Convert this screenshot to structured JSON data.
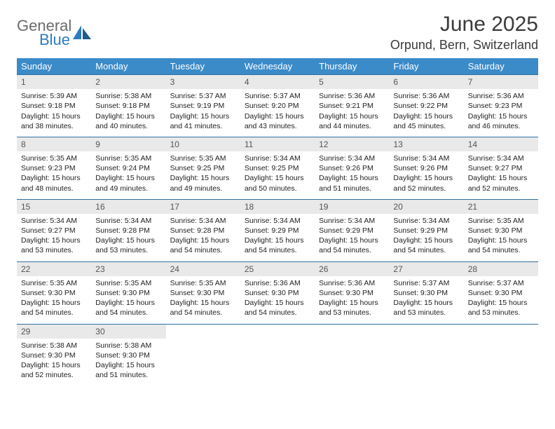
{
  "logo": {
    "word1": "General",
    "word2": "Blue"
  },
  "title": "June 2025",
  "location": "Orpund, Bern, Switzerland",
  "colors": {
    "header_bg": "#3b8bc9",
    "header_fg": "#ffffff",
    "row_border": "#2f6fa3",
    "daynum_bg": "#e9e9e9",
    "daynum_fg": "#555555",
    "body_fg": "#222222",
    "logo_gray": "#6b6b6b",
    "logo_blue": "#2f7bbf",
    "page_bg": "#ffffff"
  },
  "weekdays": [
    "Sunday",
    "Monday",
    "Tuesday",
    "Wednesday",
    "Thursday",
    "Friday",
    "Saturday"
  ],
  "weeks": [
    [
      {
        "n": "1",
        "sr": "5:39 AM",
        "ss": "9:18 PM",
        "dl": "15 hours and 38 minutes."
      },
      {
        "n": "2",
        "sr": "5:38 AM",
        "ss": "9:18 PM",
        "dl": "15 hours and 40 minutes."
      },
      {
        "n": "3",
        "sr": "5:37 AM",
        "ss": "9:19 PM",
        "dl": "15 hours and 41 minutes."
      },
      {
        "n": "4",
        "sr": "5:37 AM",
        "ss": "9:20 PM",
        "dl": "15 hours and 43 minutes."
      },
      {
        "n": "5",
        "sr": "5:36 AM",
        "ss": "9:21 PM",
        "dl": "15 hours and 44 minutes."
      },
      {
        "n": "6",
        "sr": "5:36 AM",
        "ss": "9:22 PM",
        "dl": "15 hours and 45 minutes."
      },
      {
        "n": "7",
        "sr": "5:36 AM",
        "ss": "9:23 PM",
        "dl": "15 hours and 46 minutes."
      }
    ],
    [
      {
        "n": "8",
        "sr": "5:35 AM",
        "ss": "9:23 PM",
        "dl": "15 hours and 48 minutes."
      },
      {
        "n": "9",
        "sr": "5:35 AM",
        "ss": "9:24 PM",
        "dl": "15 hours and 49 minutes."
      },
      {
        "n": "10",
        "sr": "5:35 AM",
        "ss": "9:25 PM",
        "dl": "15 hours and 49 minutes."
      },
      {
        "n": "11",
        "sr": "5:34 AM",
        "ss": "9:25 PM",
        "dl": "15 hours and 50 minutes."
      },
      {
        "n": "12",
        "sr": "5:34 AM",
        "ss": "9:26 PM",
        "dl": "15 hours and 51 minutes."
      },
      {
        "n": "13",
        "sr": "5:34 AM",
        "ss": "9:26 PM",
        "dl": "15 hours and 52 minutes."
      },
      {
        "n": "14",
        "sr": "5:34 AM",
        "ss": "9:27 PM",
        "dl": "15 hours and 52 minutes."
      }
    ],
    [
      {
        "n": "15",
        "sr": "5:34 AM",
        "ss": "9:27 PM",
        "dl": "15 hours and 53 minutes."
      },
      {
        "n": "16",
        "sr": "5:34 AM",
        "ss": "9:28 PM",
        "dl": "15 hours and 53 minutes."
      },
      {
        "n": "17",
        "sr": "5:34 AM",
        "ss": "9:28 PM",
        "dl": "15 hours and 54 minutes."
      },
      {
        "n": "18",
        "sr": "5:34 AM",
        "ss": "9:29 PM",
        "dl": "15 hours and 54 minutes."
      },
      {
        "n": "19",
        "sr": "5:34 AM",
        "ss": "9:29 PM",
        "dl": "15 hours and 54 minutes."
      },
      {
        "n": "20",
        "sr": "5:34 AM",
        "ss": "9:29 PM",
        "dl": "15 hours and 54 minutes."
      },
      {
        "n": "21",
        "sr": "5:35 AM",
        "ss": "9:30 PM",
        "dl": "15 hours and 54 minutes."
      }
    ],
    [
      {
        "n": "22",
        "sr": "5:35 AM",
        "ss": "9:30 PM",
        "dl": "15 hours and 54 minutes."
      },
      {
        "n": "23",
        "sr": "5:35 AM",
        "ss": "9:30 PM",
        "dl": "15 hours and 54 minutes."
      },
      {
        "n": "24",
        "sr": "5:35 AM",
        "ss": "9:30 PM",
        "dl": "15 hours and 54 minutes."
      },
      {
        "n": "25",
        "sr": "5:36 AM",
        "ss": "9:30 PM",
        "dl": "15 hours and 54 minutes."
      },
      {
        "n": "26",
        "sr": "5:36 AM",
        "ss": "9:30 PM",
        "dl": "15 hours and 53 minutes."
      },
      {
        "n": "27",
        "sr": "5:37 AM",
        "ss": "9:30 PM",
        "dl": "15 hours and 53 minutes."
      },
      {
        "n": "28",
        "sr": "5:37 AM",
        "ss": "9:30 PM",
        "dl": "15 hours and 53 minutes."
      }
    ],
    [
      {
        "n": "29",
        "sr": "5:38 AM",
        "ss": "9:30 PM",
        "dl": "15 hours and 52 minutes."
      },
      {
        "n": "30",
        "sr": "5:38 AM",
        "ss": "9:30 PM",
        "dl": "15 hours and 51 minutes."
      },
      null,
      null,
      null,
      null,
      null
    ]
  ],
  "labels": {
    "sunrise": "Sunrise:",
    "sunset": "Sunset:",
    "daylight": "Daylight:"
  }
}
